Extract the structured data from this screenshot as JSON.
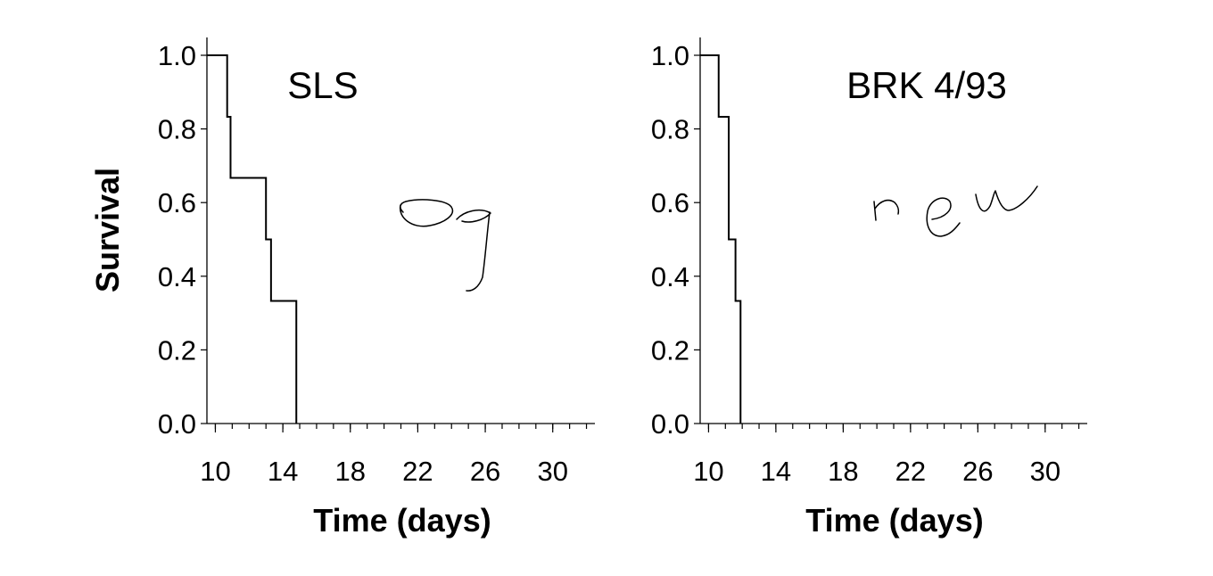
{
  "chart_data": [
    {
      "type": "line",
      "step": true,
      "title": "SLS",
      "xlabel": "Time (days)",
      "ylabel": "Survival",
      "xlim": [
        9.5,
        32.5
      ],
      "ylim": [
        0,
        1.0
      ],
      "x_tick_labels": [
        "10",
        "14",
        "18",
        "22",
        "26",
        "30"
      ],
      "y_tick_labels": [
        "0.0",
        "0.2",
        "0.4",
        "0.6",
        "0.8",
        "1.0"
      ],
      "grid": false,
      "series": [
        {
          "x": [
            9.5,
            10.7,
            10.9,
            13.0,
            13.3,
            14.8
          ],
          "y": [
            1.0,
            0.833,
            0.667,
            0.5,
            0.333,
            0.0
          ]
        }
      ],
      "annotation": "og"
    },
    {
      "type": "line",
      "step": true,
      "title": "BRK 4/93",
      "xlabel": "Time (days)",
      "ylabel": "",
      "xlim": [
        9.5,
        32.5
      ],
      "ylim": [
        0,
        1.0
      ],
      "x_tick_labels": [
        "10",
        "14",
        "18",
        "22",
        "26",
        "30"
      ],
      "y_tick_labels": [
        "0.0",
        "0.2",
        "0.4",
        "0.6",
        "0.8",
        "1.0"
      ],
      "grid": false,
      "series": [
        {
          "x": [
            9.5,
            10.6,
            11.2,
            11.6,
            11.9
          ],
          "y": [
            1.0,
            0.833,
            0.5,
            0.333,
            0.0
          ]
        }
      ],
      "annotation": "new"
    }
  ]
}
